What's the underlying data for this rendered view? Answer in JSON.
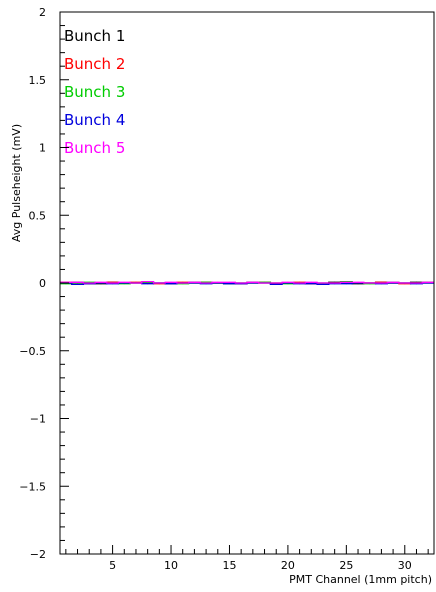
{
  "chart_data": {
    "type": "line",
    "title": "",
    "xlabel": "PMT Channel (1mm pitch)",
    "ylabel": "Avg Pulseheight (mV)",
    "xlim": [
      0.5,
      32.5
    ],
    "ylim": [
      -2,
      2
    ],
    "x_ticks": [
      5,
      10,
      15,
      20,
      25,
      30
    ],
    "x_tick_labels": [
      "5",
      "10",
      "15",
      "20",
      "25",
      "30"
    ],
    "y_ticks": [
      -2,
      -1.5,
      -1,
      -0.5,
      0,
      0.5,
      1,
      1.5,
      2
    ],
    "y_tick_labels": [
      "−2",
      "−1.5",
      "−1",
      "−0.5",
      "0",
      "0.5",
      "1",
      "1.5",
      "2"
    ],
    "grid": false,
    "legend_position": "top-left",
    "x": [
      1,
      2,
      3,
      4,
      5,
      6,
      7,
      8,
      9,
      10,
      11,
      12,
      13,
      14,
      15,
      16,
      17,
      18,
      19,
      20,
      21,
      22,
      23,
      24,
      25,
      26,
      27,
      28,
      29,
      30,
      31,
      32
    ],
    "series": [
      {
        "name": "Bunch 1",
        "color": "#000000",
        "values": [
          0.0,
          0.005,
          0.0,
          -0.005,
          0.005,
          0.0,
          0.0,
          0.005,
          0.0,
          -0.005,
          0.0,
          0.005,
          0.005,
          0.0,
          -0.005,
          0.0,
          0.005,
          0.0,
          -0.005,
          0.0,
          0.0,
          -0.005,
          0.0,
          0.005,
          0.0,
          -0.005,
          0.0,
          0.005,
          0.0,
          0.0,
          0.005,
          0.0
        ]
      },
      {
        "name": "Bunch 2",
        "color": "#ff0000",
        "values": [
          0.005,
          0.0,
          -0.005,
          0.0,
          0.005,
          0.0,
          0.005,
          0.0,
          -0.005,
          0.0,
          0.005,
          0.0,
          0.005,
          0.0,
          0.0,
          -0.005,
          0.0,
          0.005,
          0.0,
          0.0,
          0.005,
          -0.005,
          -0.005,
          0.0,
          0.005,
          0.0,
          0.0,
          0.005,
          0.0,
          -0.005,
          0.0,
          0.005
        ]
      },
      {
        "name": "Bunch 3",
        "color": "#00cc00",
        "values": [
          -0.005,
          0.0,
          0.005,
          0.0,
          0.0,
          -0.005,
          0.0,
          0.005,
          0.0,
          0.0,
          -0.005,
          0.0,
          0.005,
          0.0,
          -0.005,
          0.0,
          0.0,
          0.005,
          0.0,
          -0.005,
          0.0,
          0.0,
          -0.005,
          0.0,
          0.01,
          0.0,
          -0.005,
          0.0,
          0.005,
          0.0,
          0.0,
          0.005
        ]
      },
      {
        "name": "Bunch 4",
        "color": "#0000dd",
        "values": [
          0.0,
          -0.01,
          -0.005,
          0.0,
          -0.005,
          0.0,
          0.0,
          -0.005,
          0.0,
          -0.005,
          0.0,
          0.0,
          -0.005,
          0.0,
          -0.005,
          -0.005,
          0.0,
          0.0,
          -0.01,
          0.0,
          -0.005,
          -0.005,
          -0.01,
          -0.005,
          -0.005,
          0.0,
          0.0,
          -0.005,
          0.0,
          0.0,
          -0.005,
          0.0
        ]
      },
      {
        "name": "Bunch 5",
        "color": "#ff00ff",
        "values": [
          0.005,
          0.005,
          0.0,
          0.005,
          0.0,
          0.005,
          0.0,
          0.01,
          0.0,
          0.005,
          0.0,
          0.005,
          0.0,
          0.005,
          0.005,
          0.0,
          0.005,
          0.0,
          0.0,
          0.005,
          0.0,
          0.005,
          0.0,
          0.0,
          0.005,
          0.005,
          0.0,
          0.0,
          0.005,
          0.0,
          0.0,
          0.005
        ]
      }
    ]
  }
}
